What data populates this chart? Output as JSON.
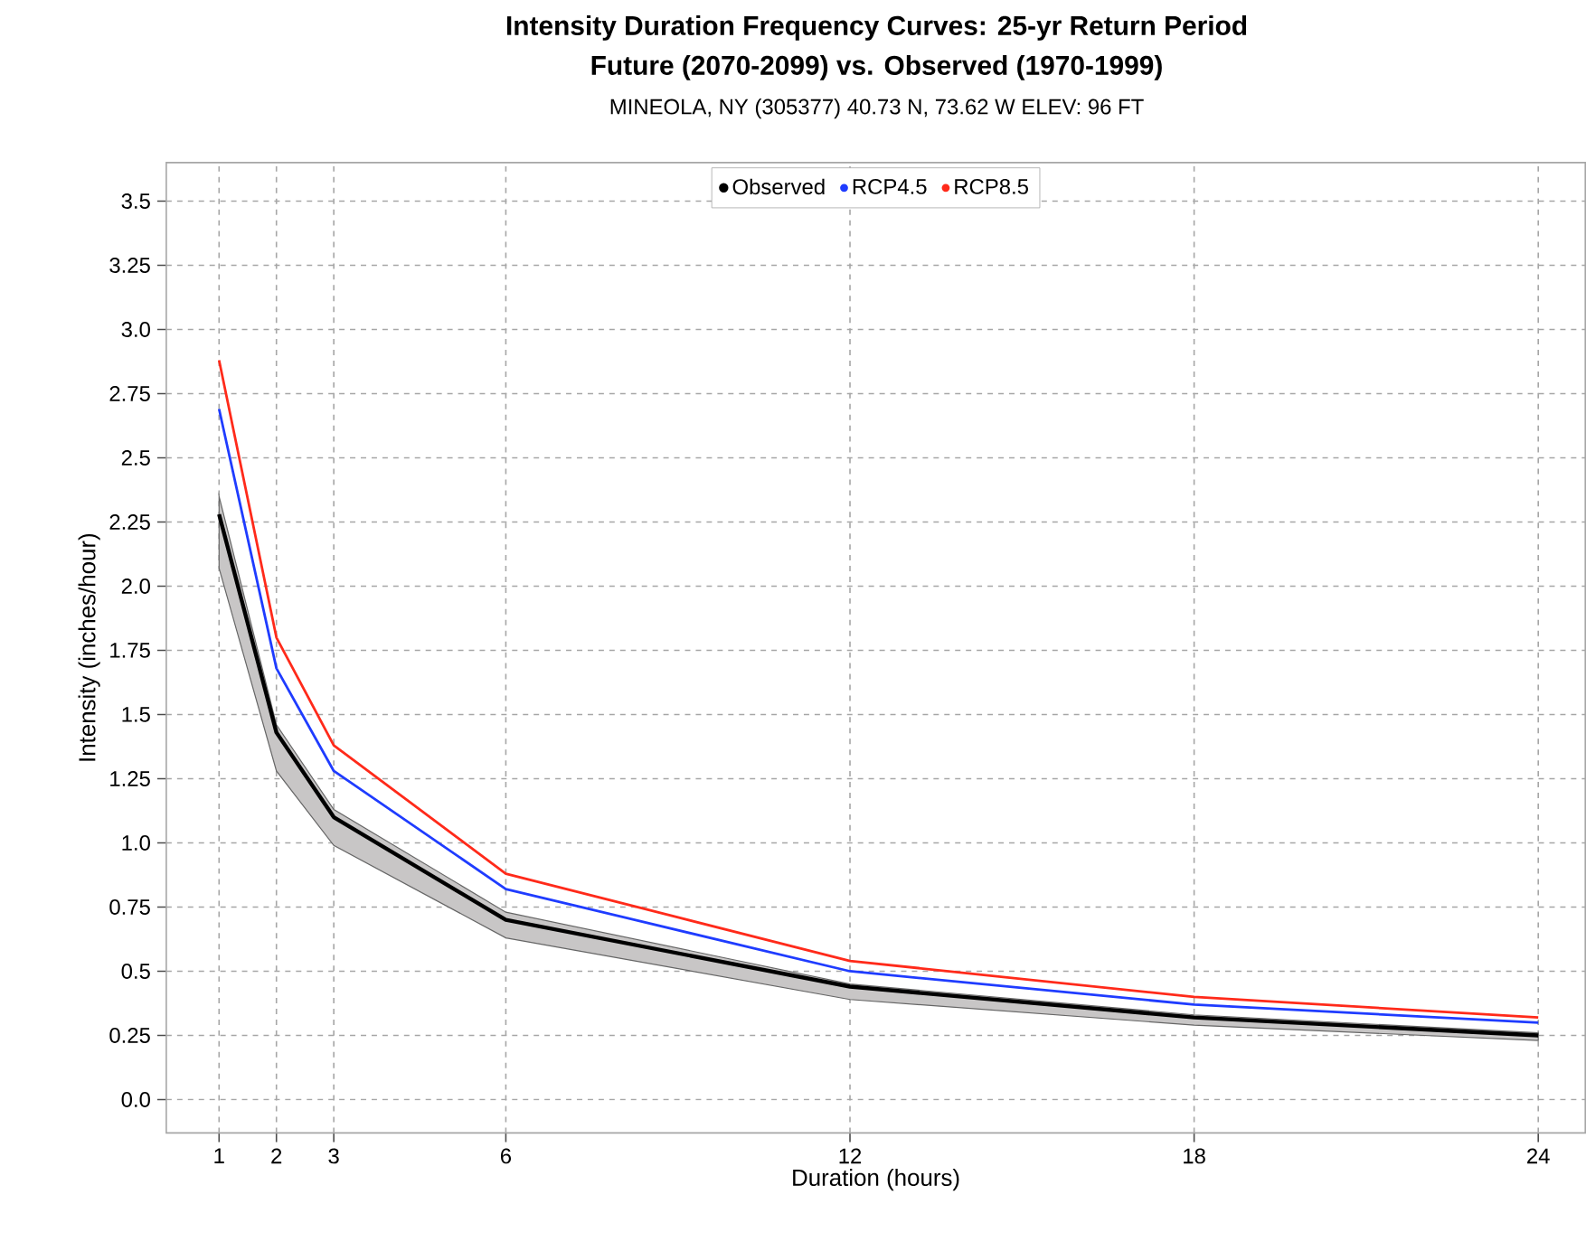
{
  "chart_data": {
    "type": "line",
    "title": "**Intensity Duration Frequency Curves: 25-yr Return Period**",
    "subtitle": "**Future (2070-2099) vs. Observed (1970-1999)**",
    "annotations": [
      "MINEOLA, NY (305377)     40.73 N, 73.62 W     ELEV:   96 FT"
    ],
    "xlabel": "Duration (hours)",
    "ylabel": "Intensity (inches/hour)",
    "x": [
      1,
      2,
      3,
      6,
      12,
      18,
      24
    ],
    "series": [
      {
        "name": "Observed",
        "color": "#000000",
        "values": [
          2.28,
          1.43,
          1.1,
          0.7,
          0.44,
          0.32,
          0.25
        ],
        "lower": [
          2.07,
          1.28,
          0.99,
          0.63,
          0.39,
          0.29,
          0.23
        ],
        "upper": [
          2.35,
          1.46,
          1.13,
          0.73,
          0.45,
          0.33,
          0.26
        ]
      },
      {
        "name": "RCP4.5",
        "color": "#1f3cff",
        "values": [
          2.69,
          1.68,
          1.28,
          0.82,
          0.5,
          0.37,
          0.3
        ]
      },
      {
        "name": "RCP8.5",
        "color": "#ff2a1a",
        "values": [
          2.88,
          1.8,
          1.38,
          0.88,
          0.54,
          0.4,
          0.32
        ]
      }
    ],
    "xlim": [
      0.08,
      24.82
    ],
    "ylim": [
      -0.13,
      3.65
    ],
    "xticks": [
      1,
      2,
      3,
      6,
      12,
      18,
      24
    ],
    "yticks": [
      {
        "value": 0,
        "label": "0.0"
      },
      0.25,
      0.5,
      0.75,
      {
        "value": 1,
        "label": "1.0"
      },
      1.25,
      1.5,
      1.75,
      {
        "value": 2,
        "label": "2.0"
      },
      2.25,
      2.5,
      2.75,
      {
        "value": 3,
        "label": "3.0"
      },
      3.25,
      3.5
    ],
    "grid": true,
    "legend": "top",
    "line_style": "solid"
  }
}
